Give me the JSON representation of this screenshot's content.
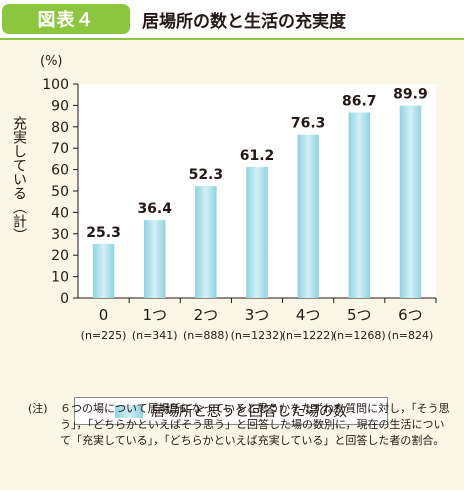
{
  "header": {
    "figure_label": "図表４",
    "title": "居場所の数と生活の充実度"
  },
  "chart_data": {
    "type": "bar",
    "categories": [
      "0",
      "1つ",
      "2つ",
      "3つ",
      "4つ",
      "5つ",
      "6つ"
    ],
    "sample_sizes": [
      "(n=225)",
      "(n=341)",
      "(n=888)",
      "(n=1232)",
      "(n=1222)",
      "(n=1268)",
      "(n=824)"
    ],
    "series": [
      {
        "name": "居場所と思うと回答した場の数",
        "values": [
          25.3,
          36.4,
          52.3,
          61.2,
          76.3,
          86.7,
          89.9
        ]
      }
    ],
    "value_labels": [
      "25.3",
      "36.4",
      "52.3",
      "61.2",
      "76.3",
      "86.7",
      "89.9"
    ],
    "ylim": [
      0,
      100
    ],
    "yticks": [
      0,
      10,
      20,
      30,
      40,
      50,
      60,
      70,
      80,
      90,
      100
    ],
    "y_unit": "(%)",
    "ylabel": "充実している（計）",
    "grid": false,
    "legend_position": "bottom",
    "bar_color": "#8fd3e0",
    "bar_highlight": "#d3f0f5"
  },
  "note": {
    "prefix": "(注)",
    "text": "６つの場について居場所になっていると思うかをたずねた質問に対し，「そう思う」，「どちらかといえばそう思う」と回答した場の数別に，現在の生活について「充実している」，「どちらかといえば充実している」と回答した者の割合。"
  },
  "colors": {
    "accent": "#8cc63f",
    "background": "#fbf6e6"
  }
}
